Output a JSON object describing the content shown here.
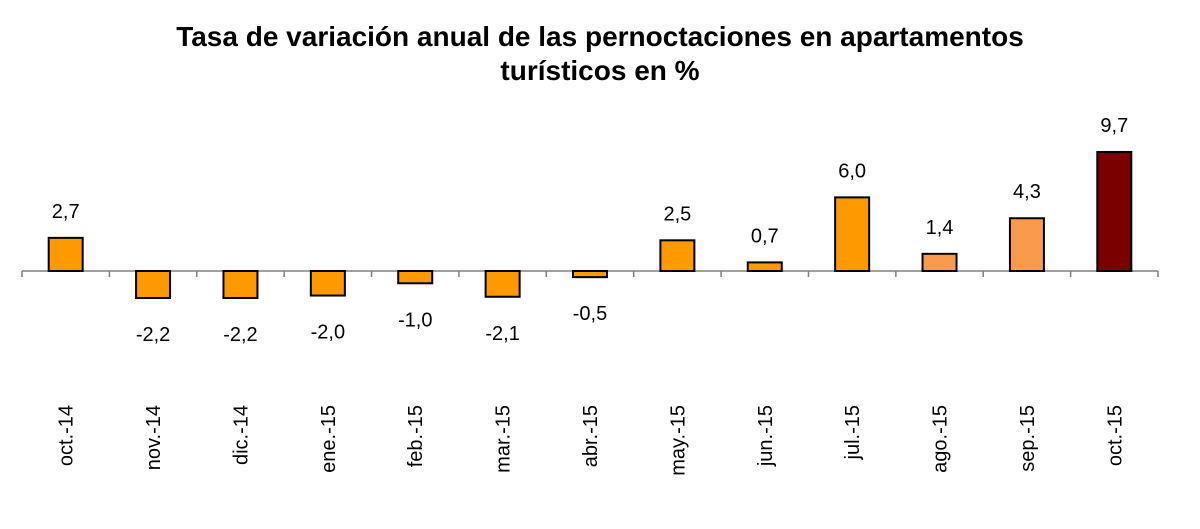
{
  "chart_data": {
    "type": "bar",
    "title": "Tasa de variación anual de las pernoctaciones en apartamentos turísticos en %",
    "categories": [
      "oct.-14",
      "nov.-14",
      "dic.-14",
      "ene.-15",
      "feb.-15",
      "mar.-15",
      "abr.-15",
      "may.-15",
      "jun.-15",
      "jul.-15",
      "ago.-15",
      "sep.-15",
      "oct.-15"
    ],
    "values": [
      2.7,
      -2.2,
      -2.2,
      -2.0,
      -1.0,
      -2.1,
      -0.5,
      2.5,
      0.7,
      6.0,
      1.4,
      4.3,
      9.7
    ],
    "value_labels": [
      "2,7",
      "-2,2",
      "-2,2",
      "-2,0",
      "-1,0",
      "-2,1",
      "-0,5",
      "2,5",
      "0,7",
      "6,0",
      "1,4",
      "4,3",
      "9,7"
    ],
    "colors": [
      "#ff9900",
      "#ff9900",
      "#ff9900",
      "#ff9900",
      "#ff9900",
      "#ff9900",
      "#ff9900",
      "#ff9900",
      "#ff9900",
      "#ff9900",
      "#f99a4c",
      "#f99a4c",
      "#7a0000"
    ]
  }
}
